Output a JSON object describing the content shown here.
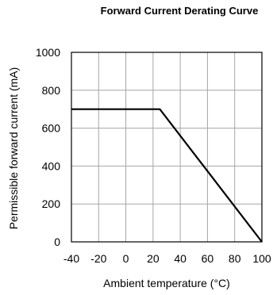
{
  "chart_data": {
    "type": "line",
    "title": "Forward Current Derating  Curve",
    "xlabel": "Ambient temperature (°C)",
    "ylabel": "Permissible forward current (mA)",
    "xlim": [
      -40,
      100
    ],
    "ylim": [
      0,
      1000
    ],
    "xticks": [
      -40,
      -20,
      0,
      20,
      40,
      60,
      80,
      100
    ],
    "yticks": [
      0,
      200,
      400,
      600,
      800,
      1000
    ],
    "grid": true,
    "legend": "none",
    "colors": {
      "series": "#000000",
      "grid": "#a6a6a6",
      "frame": "#000000"
    },
    "series": [
      {
        "x": [
          -40,
          25,
          100
        ],
        "y": [
          700,
          700,
          0
        ]
      }
    ]
  }
}
